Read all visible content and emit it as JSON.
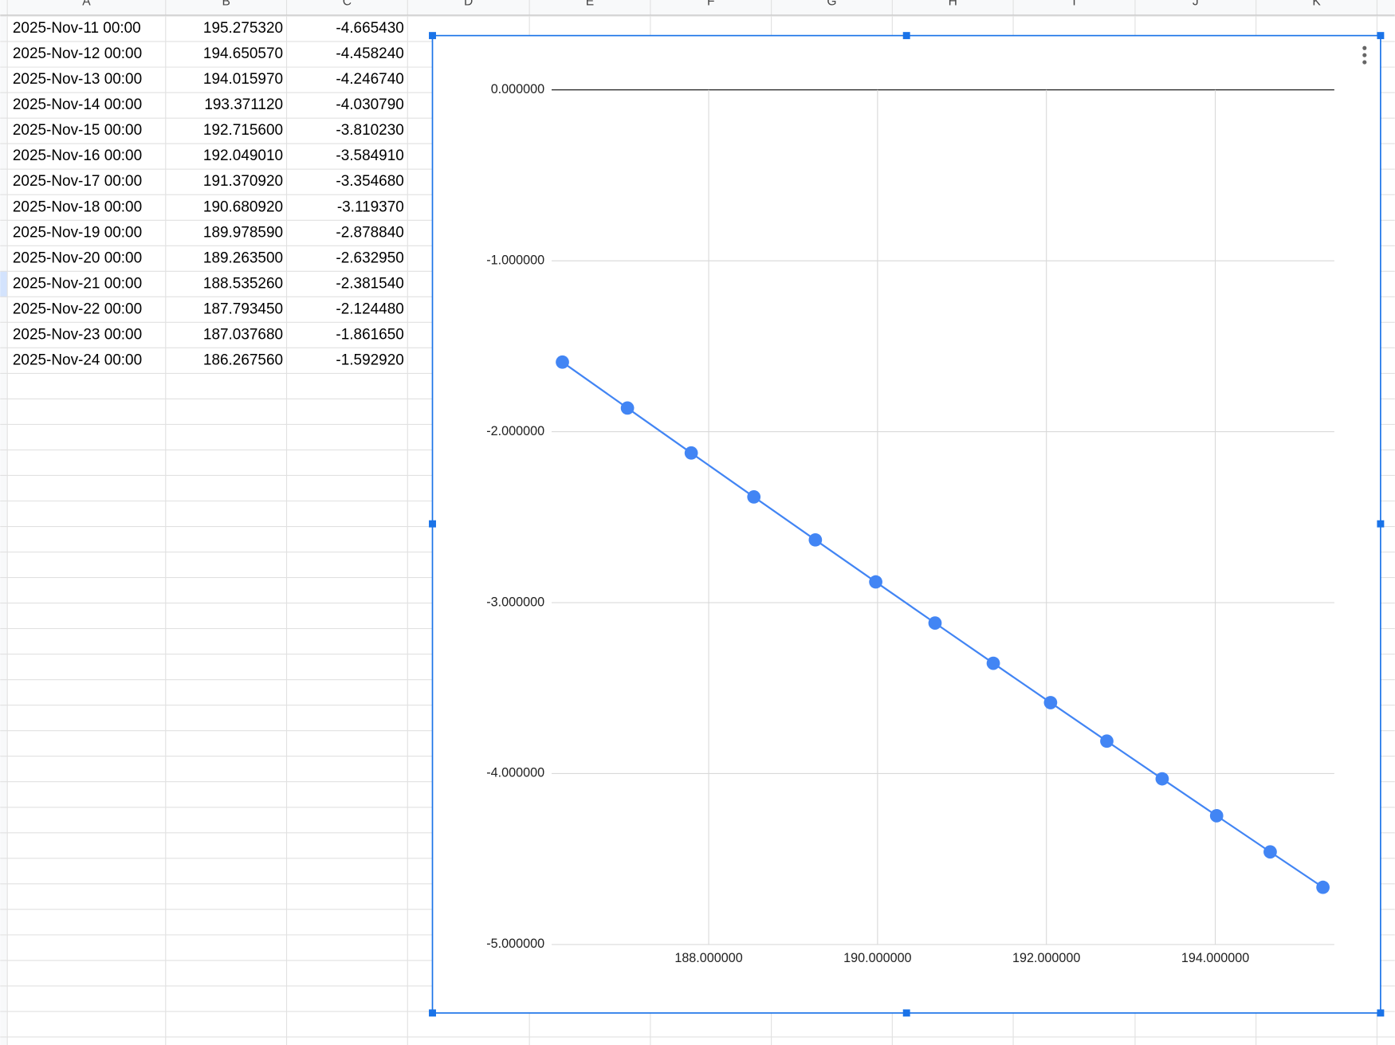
{
  "column_headers": [
    "A",
    "B",
    "C",
    "D",
    "E",
    "F",
    "G",
    "H",
    "I",
    "J",
    "K"
  ],
  "table": {
    "rows": [
      [
        "2025-Nov-11 00:00",
        "195.275320",
        "-4.665430"
      ],
      [
        "2025-Nov-12 00:00",
        "194.650570",
        "-4.458240"
      ],
      [
        "2025-Nov-13 00:00",
        "194.015970",
        "-4.246740"
      ],
      [
        "2025-Nov-14 00:00",
        "193.371120",
        "-4.030790"
      ],
      [
        "2025-Nov-15 00:00",
        "192.715600",
        "-3.810230"
      ],
      [
        "2025-Nov-16 00:00",
        "192.049010",
        "-3.584910"
      ],
      [
        "2025-Nov-17 00:00",
        "191.370920",
        "-3.354680"
      ],
      [
        "2025-Nov-18 00:00",
        "190.680920",
        "-3.119370"
      ],
      [
        "2025-Nov-19 00:00",
        "189.978590",
        "-2.878840"
      ],
      [
        "2025-Nov-20 00:00",
        "189.263500",
        "-2.632950"
      ],
      [
        "2025-Nov-21 00:00",
        "188.535260",
        "-2.381540"
      ],
      [
        "2025-Nov-22 00:00",
        "187.793450",
        "-2.124480"
      ],
      [
        "2025-Nov-23 00:00",
        "187.037680",
        "-1.861650"
      ],
      [
        "2025-Nov-24 00:00",
        "186.267560",
        "-1.592920"
      ]
    ]
  },
  "chart_data": {
    "type": "line",
    "x": [
      195.27532,
      194.65057,
      194.01597,
      193.37112,
      192.7156,
      192.04901,
      191.37092,
      190.68092,
      189.97859,
      189.2635,
      188.53526,
      187.79345,
      187.03768,
      186.26756
    ],
    "series": [
      {
        "color": "#4285f4",
        "values": [
          -4.66543,
          -4.45824,
          -4.24674,
          -4.03079,
          -3.81023,
          -3.58491,
          -3.35468,
          -3.11937,
          -2.87884,
          -2.63295,
          -2.38154,
          -2.12448,
          -1.86165,
          -1.59292
        ]
      }
    ],
    "xlim": [
      186.14,
      195.41
    ],
    "ylim": [
      -5,
      0
    ],
    "xticks": [
      {
        "value": 188,
        "label": "188.000000"
      },
      {
        "value": 190,
        "label": "190.000000"
      },
      {
        "value": 192,
        "label": "192.000000"
      },
      {
        "value": 194,
        "label": "194.000000"
      }
    ],
    "yticks": [
      {
        "value": 0,
        "label": "0.000000"
      },
      {
        "value": -1,
        "label": "-1.000000"
      },
      {
        "value": -2,
        "label": "-2.000000"
      },
      {
        "value": -3,
        "label": "-3.000000"
      },
      {
        "value": -4,
        "label": "-4.000000"
      },
      {
        "value": -5,
        "label": "-5.000000"
      }
    ],
    "grid": true
  }
}
